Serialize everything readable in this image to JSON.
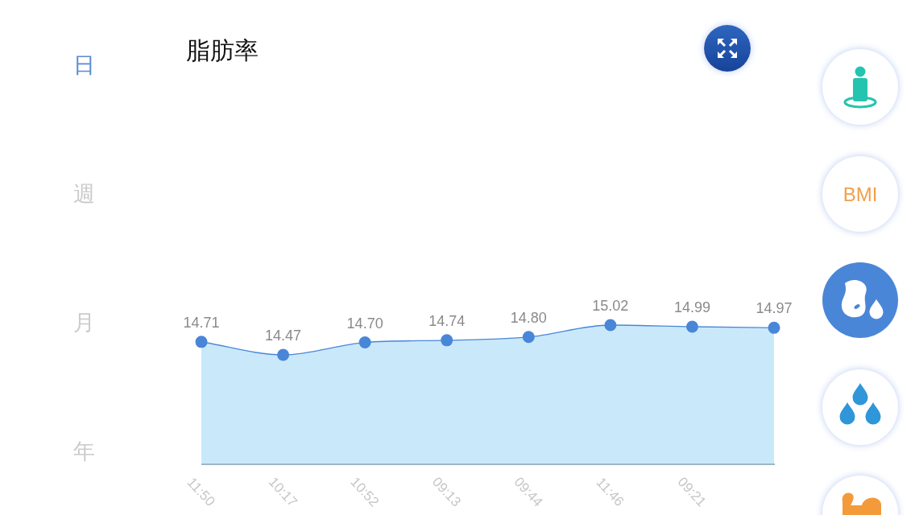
{
  "chart_data": {
    "type": "area",
    "title": "脂肪率",
    "categories": [
      "11:50",
      "10:17",
      "10:52",
      "09:13",
      "09:44",
      "11:46",
      "09:21",
      null
    ],
    "series": [
      {
        "color": "#4a86d8",
        "values": [
          14.71,
          14.47,
          14.7,
          14.74,
          14.8,
          15.02,
          14.99,
          14.97
        ],
        "value_labels": [
          "14.71",
          "14.47",
          "14.70",
          "14.74",
          "14.80",
          "15.02",
          "14.99",
          "14.97"
        ]
      }
    ],
    "marker": "circle",
    "tick_labels": "x",
    "annotations": [
      "日",
      "週",
      "月",
      "年",
      "BMI"
    ]
  }
}
